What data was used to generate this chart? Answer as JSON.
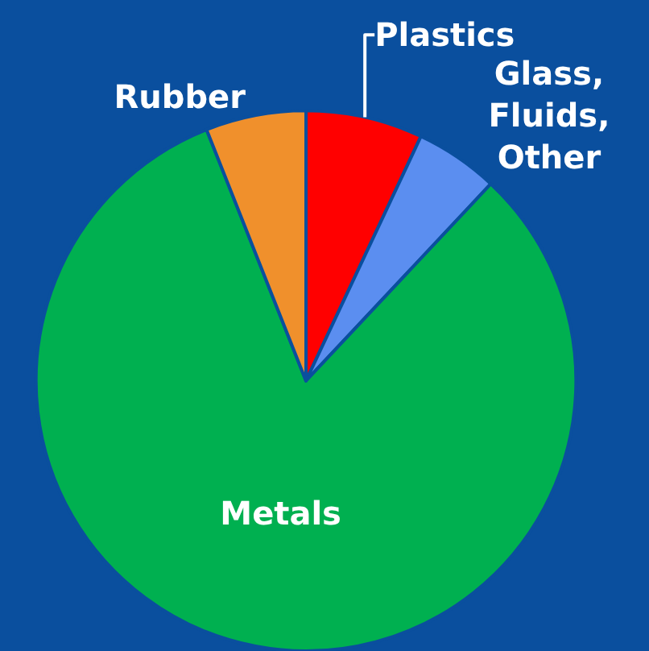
{
  "chart_data": {
    "type": "pie",
    "categories": [
      "Plastics",
      "Glass,\nFluids,\nOther",
      "Metals",
      "Rubber"
    ],
    "values": [
      7,
      5,
      82,
      6
    ],
    "colors": [
      "#ff0000",
      "#5b8ef0",
      "#00b050",
      "#f0902c"
    ]
  }
}
